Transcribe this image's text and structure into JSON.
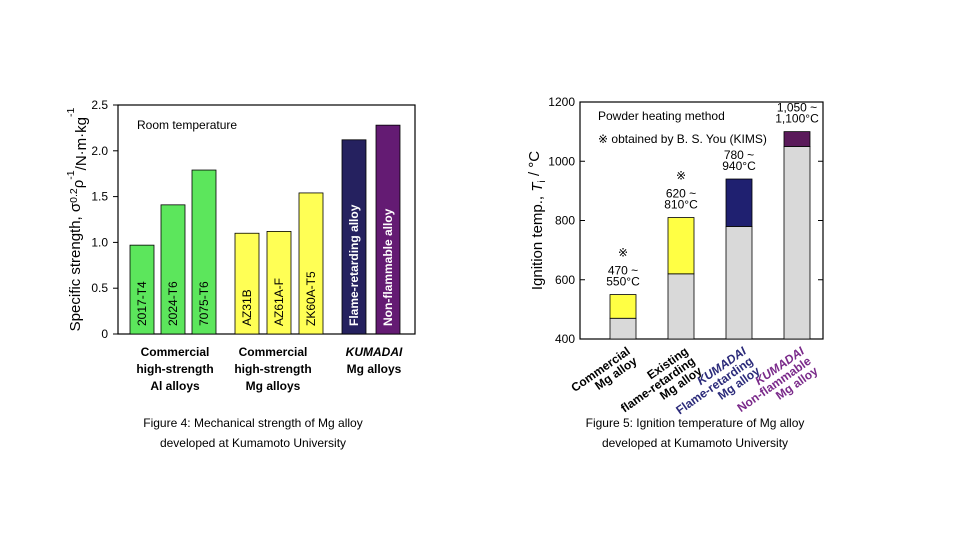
{
  "chart_data": [
    {
      "type": "bar",
      "caption": [
        "Figure 4: Mechanical strength of Mg alloy",
        "developed at Kumamoto University"
      ],
      "ylabel": [
        "Specific strength, σ",
        "0.2",
        "ρ",
        "-1",
        "/N·m·kg",
        "-1"
      ],
      "annotation": "Room temperature",
      "categories": [
        "2017-T4",
        "2024-T6",
        "7075-T6",
        "AZ31B",
        "AZ61A-F",
        "ZK60A-T5",
        "Flame-retarding alloy",
        "Non-flammable alloy"
      ],
      "values": [
        0.97,
        1.41,
        1.79,
        1.1,
        1.12,
        1.54,
        2.12,
        2.28
      ],
      "colors": [
        "#5ce65c",
        "#5ce65c",
        "#5ce65c",
        "#ffff55",
        "#ffff55",
        "#ffff55",
        "#25215f",
        "#641b73"
      ],
      "groups": [
        [
          "Commercial",
          "high-strength",
          "Al alloys"
        ],
        [
          "Commercial",
          "high-strength",
          "Mg alloys"
        ],
        [
          "KUMADAI",
          "Mg alloys"
        ]
      ],
      "ylim": [
        0,
        2.5
      ],
      "yticks": [
        0,
        0.5,
        {
          "value": 1,
          "label": "1.0"
        },
        1.5,
        {
          "value": 2,
          "label": "2.0"
        },
        2.5
      ]
    },
    {
      "type": "range-bar",
      "caption": [
        "Figure 5: Ignition temperature of Mg alloy",
        "developed at Kumamoto University"
      ],
      "ylabel": [
        "Ignition temp., ",
        "T",
        "i",
        " / °C"
      ],
      "annotations": [
        "Powder heating method",
        "※ obtained by B. S. You (KIMS)"
      ],
      "categories": [
        [
          "Commercial",
          "Mg alloy"
        ],
        [
          "Existing",
          "flame-retarding",
          "Mg alloy"
        ],
        [
          "KUMADAI",
          "Flame-retarding",
          "Mg alloy"
        ],
        [
          "KUMADAI",
          "Non-flammable",
          "Mg alloy"
        ]
      ],
      "label_colors": [
        "#000000",
        "#000000",
        "#2b2a7a",
        "#7a2a8a"
      ],
      "low": [
        470,
        620,
        780,
        1050
      ],
      "high": [
        550,
        810,
        940,
        1100
      ],
      "range_labels": [
        [
          "470 ~",
          "550°C"
        ],
        [
          "620 ~",
          "810°C"
        ],
        [
          "780 ~",
          "940°C"
        ],
        [
          "1,050 ~",
          "1,100°C"
        ]
      ],
      "marks": [
        "※",
        "※",
        null,
        null
      ],
      "base_color": "#d9d9d9",
      "colors": [
        "#ffff44",
        "#ffff44",
        "#1f2070",
        "#5a1a5a"
      ],
      "ylim": [
        400,
        1200
      ],
      "yticks": [
        400,
        600,
        800,
        1000,
        1200
      ]
    }
  ]
}
